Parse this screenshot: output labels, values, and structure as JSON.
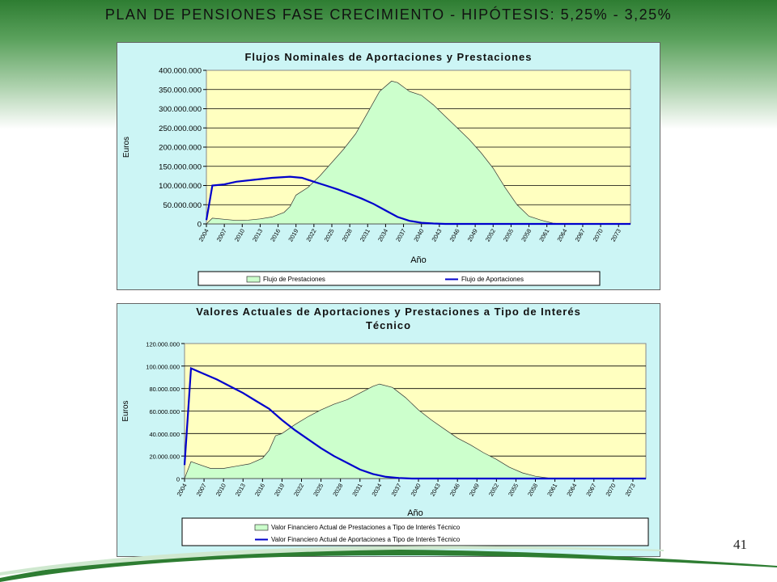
{
  "slide": {
    "title": "PLAN DE PENSIONES FASE CRECIMIENTO  - HIPÓTESIS: 5,25%  - 3,25%",
    "page_number": "41"
  },
  "colors": {
    "panel_bg": "#ccf5f5",
    "plot_bg": "#ffffc0",
    "area_fill": "#ccffcc",
    "line_blue": "#0000cc"
  },
  "chart_data": [
    {
      "type": "area",
      "title": "Flujos Nominales de Aportaciones y Prestaciones",
      "xlabel": "Año",
      "ylabel": "Euros",
      "ylim": [
        0,
        400000000
      ],
      "xlim": [
        2004,
        2075
      ],
      "yticks": [
        0,
        50000000,
        100000000,
        150000000,
        200000000,
        250000000,
        300000000,
        350000000,
        400000000
      ],
      "ytick_labels": [
        "0",
        "50.000.000",
        "100.000.000",
        "150.000.000",
        "200.000.000",
        "250.000.000",
        "300.000.000",
        "350.000.000",
        "400.000.000"
      ],
      "xtick_labels": [
        "2004",
        "2007",
        "2010",
        "2013",
        "2016",
        "2019",
        "2022",
        "2025",
        "2028",
        "2031",
        "2034",
        "2037",
        "2040",
        "2043",
        "2046",
        "2049",
        "2052",
        "2055",
        "2058",
        "2061",
        "2064",
        "2067",
        "2070",
        "2073"
      ],
      "grid": true,
      "legend_position": "bottom",
      "series": [
        {
          "name": "Flujo de Prestaciones",
          "kind": "area",
          "points": [
            [
              2004,
              0
            ],
            [
              2005,
              15000000
            ],
            [
              2007,
              12000000
            ],
            [
              2009,
              9000000
            ],
            [
              2011,
              10000000
            ],
            [
              2013,
              13000000
            ],
            [
              2015,
              18000000
            ],
            [
              2017,
              30000000
            ],
            [
              2018,
              45000000
            ],
            [
              2019,
              75000000
            ],
            [
              2021,
              95000000
            ],
            [
              2023,
              125000000
            ],
            [
              2025,
              160000000
            ],
            [
              2027,
              195000000
            ],
            [
              2029,
              235000000
            ],
            [
              2031,
              290000000
            ],
            [
              2033,
              345000000
            ],
            [
              2035,
              372000000
            ],
            [
              2036,
              368000000
            ],
            [
              2038,
              345000000
            ],
            [
              2040,
              335000000
            ],
            [
              2042,
              310000000
            ],
            [
              2044,
              280000000
            ],
            [
              2046,
              250000000
            ],
            [
              2048,
              220000000
            ],
            [
              2050,
              185000000
            ],
            [
              2052,
              145000000
            ],
            [
              2054,
              95000000
            ],
            [
              2056,
              50000000
            ],
            [
              2058,
              20000000
            ],
            [
              2060,
              10000000
            ],
            [
              2062,
              2000000
            ],
            [
              2064,
              0
            ],
            [
              2075,
              0
            ]
          ]
        },
        {
          "name": "Flujo de Aportaciones",
          "kind": "line",
          "points": [
            [
              2004,
              10000000
            ],
            [
              2005,
              100000000
            ],
            [
              2007,
              103000000
            ],
            [
              2009,
              110000000
            ],
            [
              2012,
              115000000
            ],
            [
              2015,
              120000000
            ],
            [
              2018,
              123000000
            ],
            [
              2020,
              120000000
            ],
            [
              2022,
              110000000
            ],
            [
              2024,
              100000000
            ],
            [
              2026,
              90000000
            ],
            [
              2028,
              78000000
            ],
            [
              2030,
              66000000
            ],
            [
              2032,
              52000000
            ],
            [
              2034,
              35000000
            ],
            [
              2036,
              18000000
            ],
            [
              2038,
              8000000
            ],
            [
              2040,
              3000000
            ],
            [
              2042,
              1000000
            ],
            [
              2044,
              0
            ],
            [
              2075,
              0
            ]
          ]
        }
      ]
    },
    {
      "type": "area",
      "title": "Valores Actuales de Aportaciones y Prestaciones a Tipo de Interés Técnico",
      "xlabel": "Año",
      "ylabel": "Euros",
      "ylim": [
        0,
        120000000
      ],
      "xlim": [
        2004,
        2075
      ],
      "yticks": [
        0,
        20000000,
        40000000,
        60000000,
        80000000,
        100000000,
        120000000
      ],
      "ytick_labels": [
        "0",
        "20.000.000",
        "40.000.000",
        "60.000.000",
        "80.000.000",
        "100.000.000",
        "120.000.000"
      ],
      "xtick_labels": [
        "2004",
        "2007",
        "2010",
        "2013",
        "2016",
        "2019",
        "2022",
        "2025",
        "2028",
        "2031",
        "2034",
        "2037",
        "2040",
        "2043",
        "2046",
        "2049",
        "2052",
        "2055",
        "2058",
        "2061",
        "2064",
        "2067",
        "2070",
        "2073"
      ],
      "grid": true,
      "legend_position": "bottom",
      "series": [
        {
          "name": "Valor Financiero Actual de Prestaciones a Tipo de Interés Técnico",
          "kind": "area",
          "points": [
            [
              2004,
              0
            ],
            [
              2005,
              15000000
            ],
            [
              2006,
              13000000
            ],
            [
              2008,
              9000000
            ],
            [
              2010,
              9000000
            ],
            [
              2012,
              11000000
            ],
            [
              2014,
              13000000
            ],
            [
              2016,
              18000000
            ],
            [
              2017,
              25000000
            ],
            [
              2018,
              38000000
            ],
            [
              2019,
              40000000
            ],
            [
              2021,
              48000000
            ],
            [
              2023,
              55000000
            ],
            [
              2025,
              61000000
            ],
            [
              2027,
              66000000
            ],
            [
              2029,
              70000000
            ],
            [
              2031,
              76000000
            ],
            [
              2033,
              82000000
            ],
            [
              2034,
              84000000
            ],
            [
              2036,
              81000000
            ],
            [
              2038,
              72000000
            ],
            [
              2040,
              61000000
            ],
            [
              2042,
              52000000
            ],
            [
              2044,
              44000000
            ],
            [
              2046,
              36000000
            ],
            [
              2048,
              30000000
            ],
            [
              2050,
              23000000
            ],
            [
              2052,
              17000000
            ],
            [
              2054,
              10000000
            ],
            [
              2056,
              5000000
            ],
            [
              2058,
              2000000
            ],
            [
              2060,
              500000
            ],
            [
              2062,
              0
            ],
            [
              2075,
              0
            ]
          ]
        },
        {
          "name": "Valor Financiero Actual de Aportaciones a Tipo de Interés Técnico",
          "kind": "line",
          "points": [
            [
              2004,
              12000000
            ],
            [
              2005,
              98000000
            ],
            [
              2007,
              93000000
            ],
            [
              2009,
              88000000
            ],
            [
              2011,
              82000000
            ],
            [
              2013,
              76000000
            ],
            [
              2015,
              69000000
            ],
            [
              2017,
              62000000
            ],
            [
              2019,
              52000000
            ],
            [
              2021,
              43000000
            ],
            [
              2023,
              35000000
            ],
            [
              2025,
              27000000
            ],
            [
              2027,
              20000000
            ],
            [
              2029,
              14000000
            ],
            [
              2031,
              8000000
            ],
            [
              2033,
              4000000
            ],
            [
              2035,
              1500000
            ],
            [
              2037,
              500000
            ],
            [
              2039,
              0
            ],
            [
              2075,
              0
            ]
          ]
        }
      ]
    }
  ]
}
